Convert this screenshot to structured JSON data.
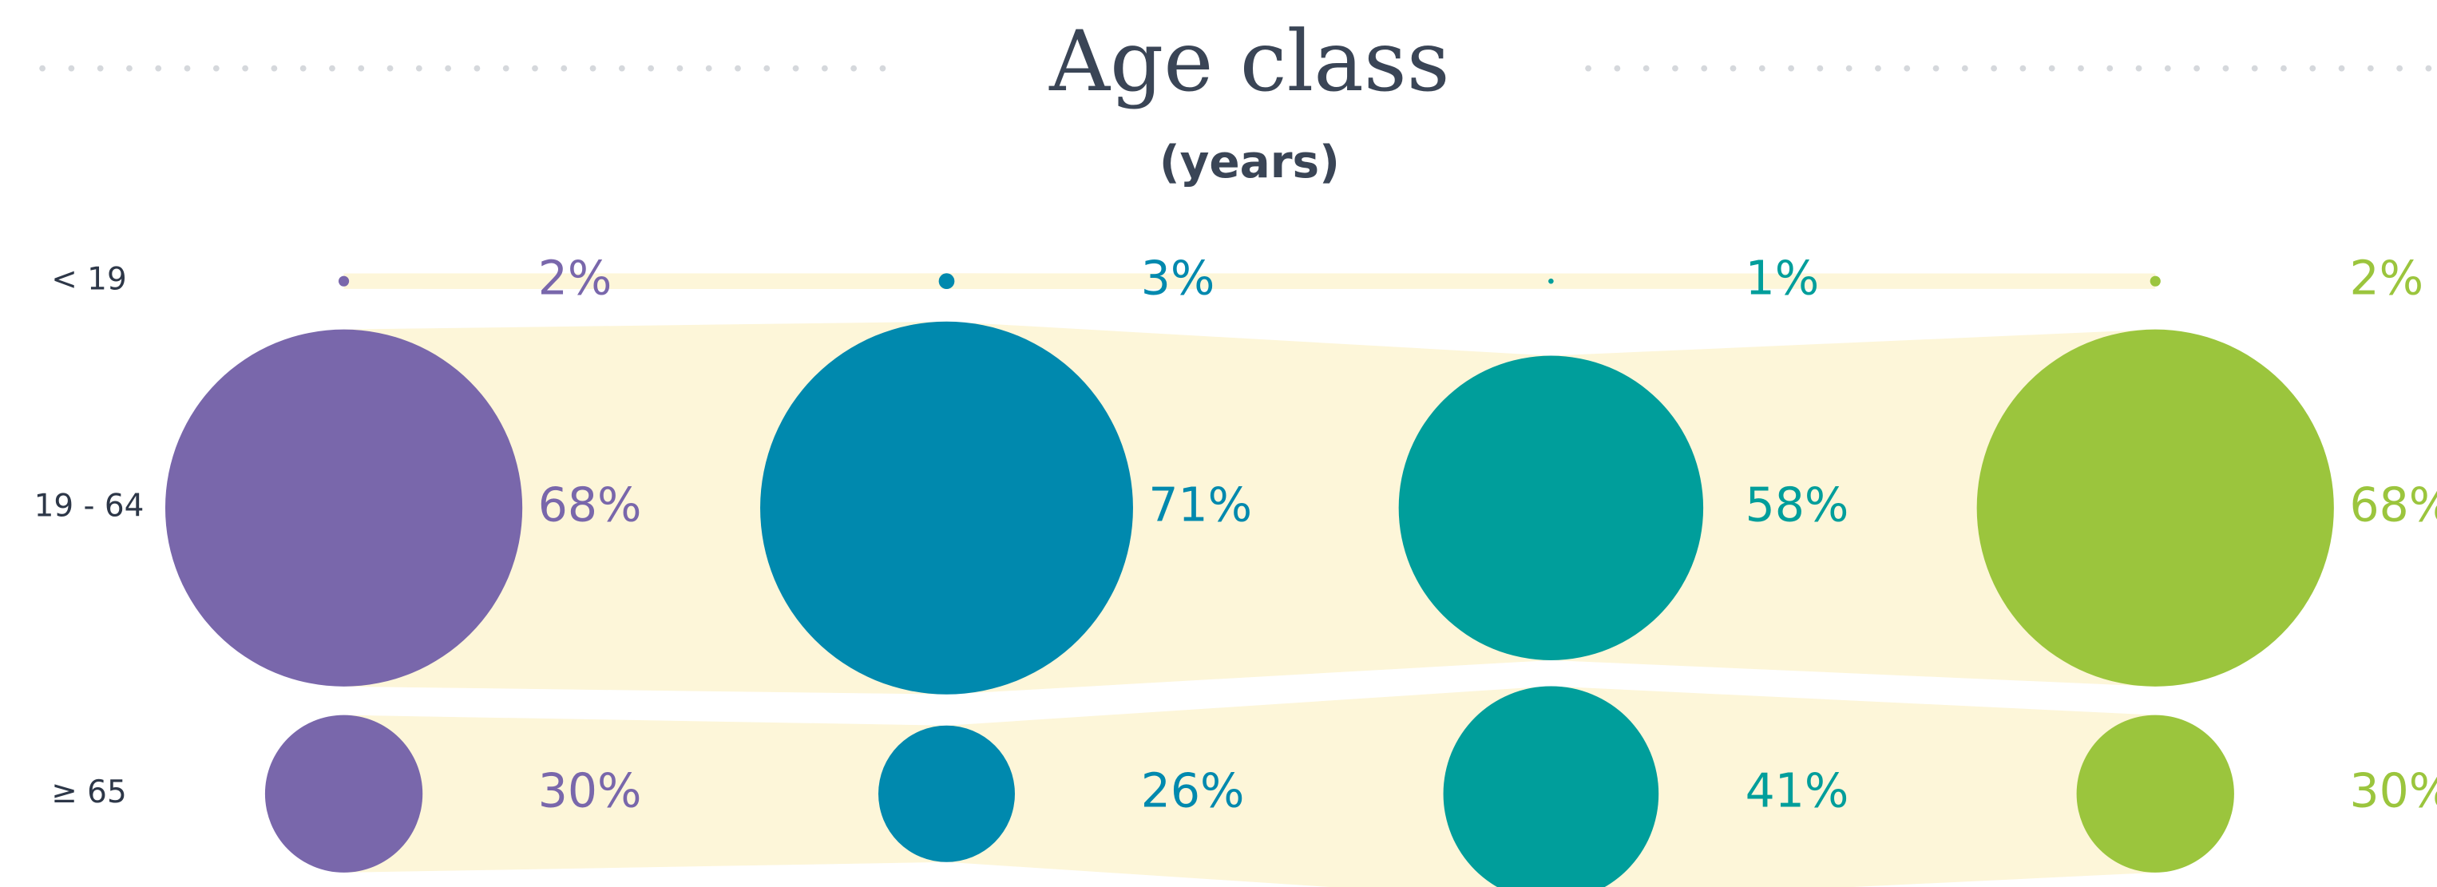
{
  "chart_data": {
    "type": "bubble",
    "title": "Age class",
    "subtitle": "(years)",
    "categories": [
      "< 19",
      "19 - 64",
      "≥ 65"
    ],
    "series": [
      {
        "color": "#7967ab",
        "values": [
          2,
          68,
          30
        ],
        "value_labels": [
          "2%",
          "68%",
          "30%"
        ]
      },
      {
        "color": "#0089ae",
        "values": [
          3,
          71,
          26
        ],
        "value_labels": [
          "3%",
          "71%",
          "26%"
        ]
      },
      {
        "color": "#009e9b",
        "values": [
          1,
          58,
          41
        ],
        "value_labels": [
          "1%",
          "58%",
          "41%"
        ]
      },
      {
        "color": "#9bc53d",
        "values": [
          2,
          68,
          30
        ],
        "value_labels": [
          "2%",
          "68%",
          "30%"
        ]
      }
    ]
  }
}
